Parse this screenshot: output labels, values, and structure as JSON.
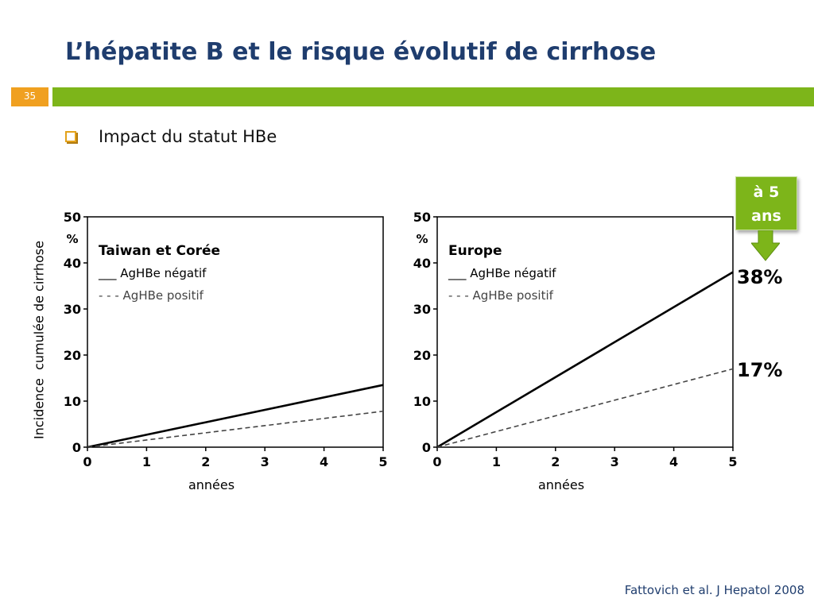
{
  "slide": {
    "title": "L’hépatite B et le risque évolutif de cirrhose",
    "number": "35",
    "bullet": "Impact du statut HBe",
    "ylabel": "Incidence  cumulée de cirrhose",
    "badge_line1": "à 5",
    "badge_line2": "ans",
    "label_38": "38%",
    "label_17": "17%",
    "citation": "Fattovich et al. J Hepatol 2008",
    "colors": {
      "title": "#1F3D6E",
      "accent_green": "#7DB51A",
      "accent_orange": "#F0A020"
    }
  },
  "chart_data": [
    {
      "type": "line",
      "title": "Taiwan et Corée",
      "xlabel": "années",
      "ylabel_unit": "%",
      "xlim": [
        0,
        5
      ],
      "ylim": [
        0,
        50
      ],
      "xticks": [
        0,
        1,
        2,
        3,
        4,
        5
      ],
      "yticks": [
        0,
        10,
        20,
        30,
        40,
        50
      ],
      "series": [
        {
          "name": "AgHBe négatif",
          "legend_marker": "___",
          "style": "solid",
          "x": [
            0,
            5
          ],
          "y": [
            0,
            13.5
          ]
        },
        {
          "name": "AgHBe positif",
          "legend_marker": "- - -",
          "style": "dashed",
          "x": [
            0,
            5
          ],
          "y": [
            0,
            7.8
          ]
        }
      ]
    },
    {
      "type": "line",
      "title": "Europe",
      "xlabel": "années",
      "ylabel_unit": "%",
      "xlim": [
        0,
        5
      ],
      "ylim": [
        0,
        50
      ],
      "xticks": [
        0,
        1,
        2,
        3,
        4,
        5
      ],
      "yticks": [
        0,
        10,
        20,
        30,
        40,
        50
      ],
      "series": [
        {
          "name": "AgHBe négatif",
          "legend_marker": "___",
          "style": "solid",
          "x": [
            0,
            5
          ],
          "y": [
            0,
            38
          ]
        },
        {
          "name": "AgHBe positif",
          "legend_marker": "- - -",
          "style": "dashed",
          "x": [
            0,
            5
          ],
          "y": [
            0,
            17
          ]
        }
      ]
    }
  ]
}
